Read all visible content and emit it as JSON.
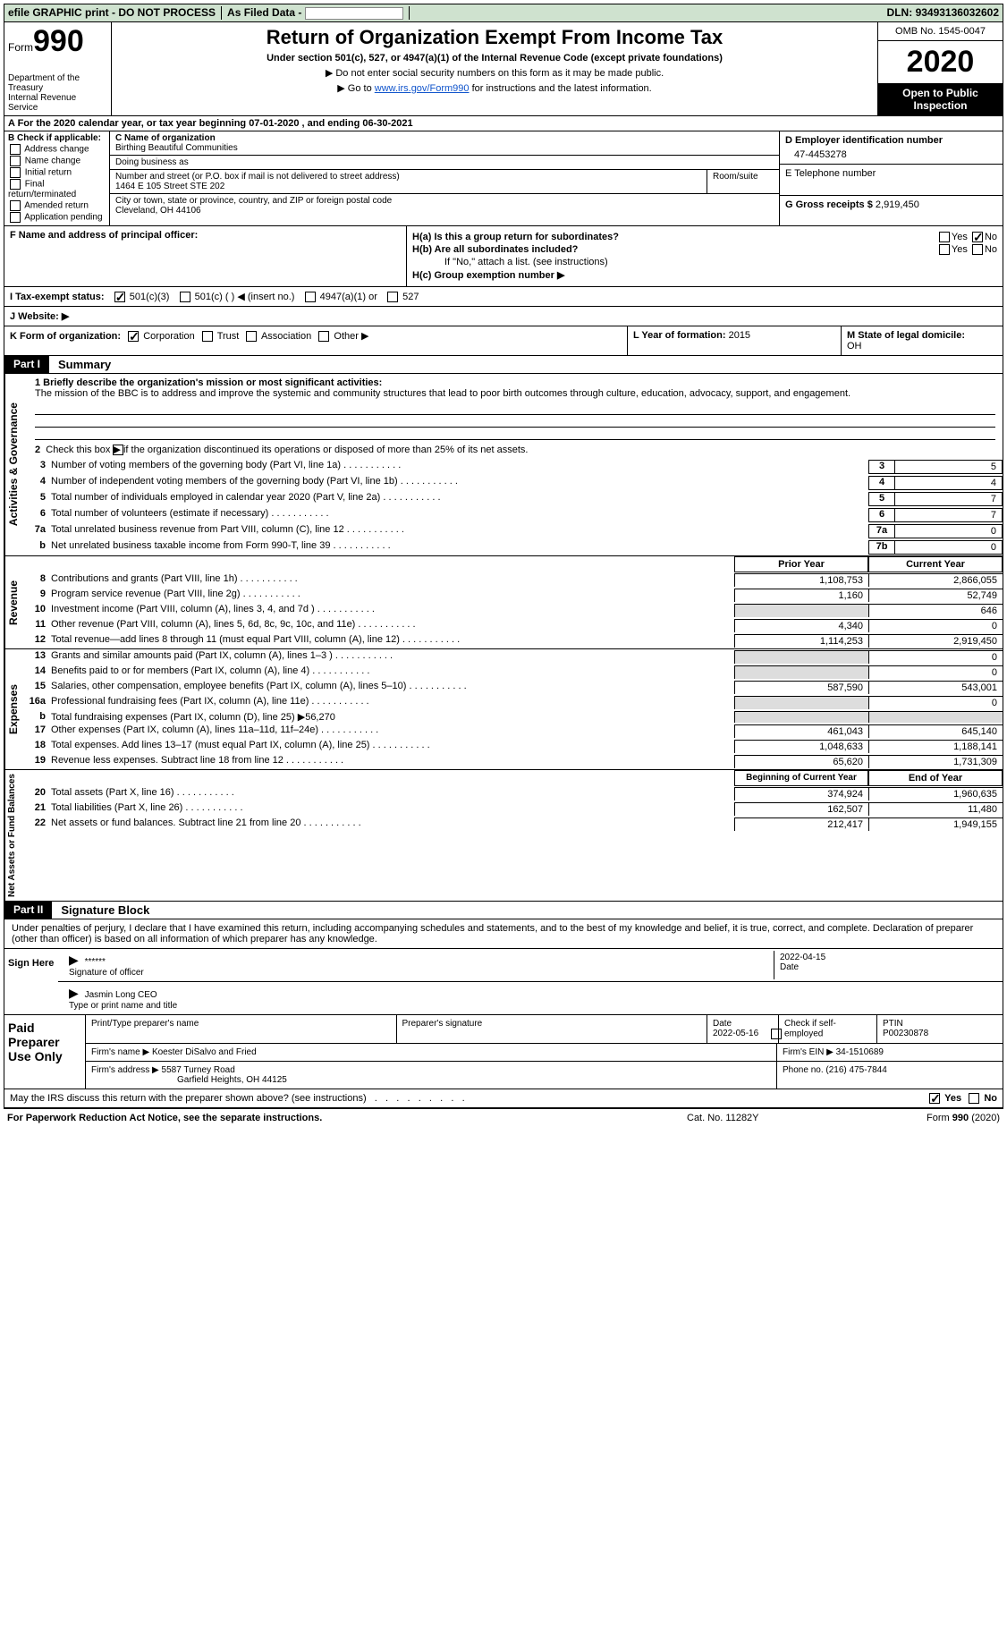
{
  "topbar": {
    "left": "efile GRAPHIC print - DO NOT PROCESS",
    "mid_label": "As Filed Data -",
    "dln_label": "DLN:",
    "dln": "93493136032602"
  },
  "header": {
    "form_word": "Form",
    "form_num": "990",
    "dept1": "Department of the",
    "dept2": "Treasury",
    "dept3": "Internal Revenue Service",
    "title": "Return of Organization Exempt From Income Tax",
    "sub1": "Under section 501(c), 527, or 4947(a)(1) of the Internal Revenue Code (except private foundations)",
    "sub2": "▶ Do not enter social security numbers on this form as it may be made public.",
    "sub3a": "▶ Go to ",
    "sub3_link": "www.irs.gov/Form990",
    "sub3b": " for instructions and the latest information.",
    "omb": "OMB No. 1545-0047",
    "year": "2020",
    "open": "Open to Public Inspection"
  },
  "row_a": "A   For the 2020 calendar year, or tax year beginning 07-01-2020   , and ending 06-30-2021",
  "col_b": {
    "hdr": "B Check if applicable:",
    "items": [
      "Address change",
      "Name change",
      "Initial return",
      "Final return/terminated",
      "Amended return",
      "Application pending"
    ]
  },
  "col_c": {
    "name_lbl": "C Name of organization",
    "name": "Birthing Beautiful Communities",
    "dba_lbl": "Doing business as",
    "street_lbl": "Number and street (or P.O. box if mail is not delivered to street address)",
    "room_lbl": "Room/suite",
    "street": "1464 E 105 Street STE 202",
    "city_lbl": "City or town, state or province, country, and ZIP or foreign postal code",
    "city": "Cleveland, OH  44106"
  },
  "col_de": {
    "d_lbl": "D Employer identification number",
    "ein": "47-4453278",
    "e_lbl": "E Telephone number",
    "g_lbl": "G Gross receipts $",
    "g_val": "2,919,450"
  },
  "row_f": {
    "left_lbl": "F  Name and address of principal officer:",
    "ha": "H(a)  Is this a group return for subordinates?",
    "hb": "H(b)  Are all subordinates included?",
    "hb_note": "If \"No,\" attach a list. (see instructions)",
    "hc": "H(c)  Group exemption number ▶"
  },
  "row_i": {
    "lbl": "I   Tax-exempt status:",
    "opts": [
      "501(c)(3)",
      "501(c) (   ) ◀ (insert no.)",
      "4947(a)(1) or",
      "527"
    ]
  },
  "row_j": "J   Website: ▶",
  "row_k": {
    "lbl": "K Form of organization:",
    "opts": [
      "Corporation",
      "Trust",
      "Association",
      "Other ▶"
    ],
    "l_lbl": "L Year of formation:",
    "l_val": "2015",
    "m_lbl": "M State of legal domicile:",
    "m_val": "OH"
  },
  "part1": {
    "tag": "Part I",
    "title": "Summary"
  },
  "gov": {
    "q1_lbl": "1 Briefly describe the organization's mission or most significant activities:",
    "q1_txt": "The mission of the BBC is to address and improve the systemic and community structures that lead to poor birth outcomes through culture, education, advocacy, support, and engagement.",
    "q2": "Check this box ▶       if the organization discontinued its operations or disposed of more than 25% of its net assets.",
    "lines": [
      {
        "n": "3",
        "t": "Number of voting members of the governing body (Part VI, line 1a)",
        "c": "3",
        "v": "5"
      },
      {
        "n": "4",
        "t": "Number of independent voting members of the governing body (Part VI, line 1b)",
        "c": "4",
        "v": "4"
      },
      {
        "n": "5",
        "t": "Total number of individuals employed in calendar year 2020 (Part V, line 2a)",
        "c": "5",
        "v": "7"
      },
      {
        "n": "6",
        "t": "Total number of volunteers (estimate if necessary)",
        "c": "6",
        "v": "7"
      },
      {
        "n": "7a",
        "t": "Total unrelated business revenue from Part VIII, column (C), line 12",
        "c": "7a",
        "v": "0"
      },
      {
        "n": "b",
        "t": "Net unrelated business taxable income from Form 990-T, line 39",
        "c": "7b",
        "v": "0"
      }
    ]
  },
  "yearhdr": {
    "prior": "Prior Year",
    "current": "Current Year"
  },
  "rev": {
    "label": "Revenue",
    "lines": [
      {
        "n": "8",
        "t": "Contributions and grants (Part VIII, line 1h)",
        "a": "1,108,753",
        "b": "2,866,055"
      },
      {
        "n": "9",
        "t": "Program service revenue (Part VIII, line 2g)",
        "a": "1,160",
        "b": "52,749"
      },
      {
        "n": "10",
        "t": "Investment income (Part VIII, column (A), lines 3, 4, and 7d )",
        "a": "",
        "b": "646"
      },
      {
        "n": "11",
        "t": "Other revenue (Part VIII, column (A), lines 5, 6d, 8c, 9c, 10c, and 11e)",
        "a": "4,340",
        "b": "0"
      },
      {
        "n": "12",
        "t": "Total revenue—add lines 8 through 11 (must equal Part VIII, column (A), line 12)",
        "a": "1,114,253",
        "b": "2,919,450"
      }
    ]
  },
  "exp": {
    "label": "Expenses",
    "lines": [
      {
        "n": "13",
        "t": "Grants and similar amounts paid (Part IX, column (A), lines 1–3 )",
        "a": "",
        "b": "0"
      },
      {
        "n": "14",
        "t": "Benefits paid to or for members (Part IX, column (A), line 4)",
        "a": "",
        "b": "0"
      },
      {
        "n": "15",
        "t": "Salaries, other compensation, employee benefits (Part IX, column (A), lines 5–10)",
        "a": "587,590",
        "b": "543,001"
      },
      {
        "n": "16a",
        "t": "Professional fundraising fees (Part IX, column (A), line 11e)",
        "a": "",
        "b": "0"
      },
      {
        "n": "b",
        "t": "Total fundraising expenses (Part IX, column (D), line 25) ▶56,270",
        "a": "",
        "b": ""
      },
      {
        "n": "17",
        "t": "Other expenses (Part IX, column (A), lines 11a–11d, 11f–24e)",
        "a": "461,043",
        "b": "645,140"
      },
      {
        "n": "18",
        "t": "Total expenses. Add lines 13–17 (must equal Part IX, column (A), line 25)",
        "a": "1,048,633",
        "b": "1,188,141"
      },
      {
        "n": "19",
        "t": "Revenue less expenses. Subtract line 18 from line 12",
        "a": "65,620",
        "b": "1,731,309"
      }
    ]
  },
  "net": {
    "label": "Net Assets or Fund Balances",
    "hdr_a": "Beginning of Current Year",
    "hdr_b": "End of Year",
    "lines": [
      {
        "n": "20",
        "t": "Total assets (Part X, line 16)",
        "a": "374,924",
        "b": "1,960,635"
      },
      {
        "n": "21",
        "t": "Total liabilities (Part X, line 26)",
        "a": "162,507",
        "b": "11,480"
      },
      {
        "n": "22",
        "t": "Net assets or fund balances. Subtract line 21 from line 20",
        "a": "212,417",
        "b": "1,949,155"
      }
    ]
  },
  "part2": {
    "tag": "Part II",
    "title": "Signature Block"
  },
  "sig": {
    "declar": "Under penalties of perjury, I declare that I have examined this return, including accompanying schedules and statements, and to the best of my knowledge and belief, it is true, correct, and complete. Declaration of preparer (other than officer) is based on all information of which preparer has any knowledge.",
    "side": "Sign Here",
    "stars": "******",
    "sig_lbl": "Signature of officer",
    "date": "2022-04-15",
    "date_lbl": "Date",
    "name": "Jasmin Long CEO",
    "name_lbl": "Type or print name and title"
  },
  "prep": {
    "side": "Paid Preparer Use Only",
    "col1": "Print/Type preparer's name",
    "col2": "Preparer's signature",
    "col3_lbl": "Date",
    "col3": "2022-05-16",
    "col4_lbl": "Check        if self-employed",
    "col5_lbl": "PTIN",
    "col5": "P00230878",
    "firm_lbl": "Firm's name    ▶",
    "firm": "Koester DiSalvo and Fried",
    "ein_lbl": "Firm's EIN ▶",
    "ein": "34-1510689",
    "addr_lbl": "Firm's address ▶",
    "addr1": "5587 Turney Road",
    "addr2": "Garfield Heights, OH  44125",
    "phone_lbl": "Phone no.",
    "phone": "(216) 475-7844"
  },
  "mayirs": "May the IRS discuss this return with the preparer shown above? (see instructions)",
  "footer": {
    "left": "For Paperwork Reduction Act Notice, see the separate instructions.",
    "mid": "Cat. No. 11282Y",
    "right": "Form 990 (2020)"
  }
}
